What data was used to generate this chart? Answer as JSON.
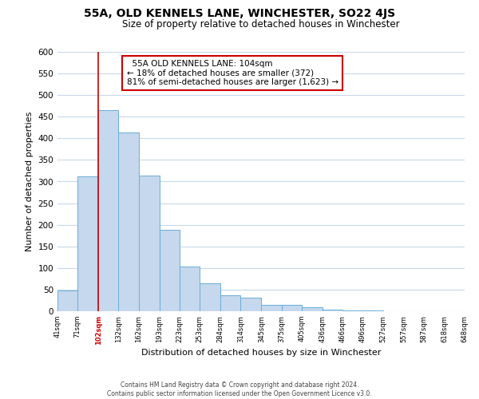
{
  "title": "55A, OLD KENNELS LANE, WINCHESTER, SO22 4JS",
  "subtitle": "Size of property relative to detached houses in Winchester",
  "xlabel": "Distribution of detached houses by size in Winchester",
  "ylabel": "Number of detached properties",
  "bar_values": [
    48,
    312,
    465,
    413,
    313,
    188,
    104,
    65,
    37,
    32,
    14,
    15,
    9,
    4,
    1,
    2,
    0,
    0,
    0,
    0
  ],
  "bin_edges_labels": [
    "41sqm",
    "71sqm",
    "102sqm",
    "132sqm",
    "162sqm",
    "193sqm",
    "223sqm",
    "253sqm",
    "284sqm",
    "314sqm",
    "345sqm",
    "375sqm",
    "405sqm",
    "436sqm",
    "466sqm",
    "496sqm",
    "527sqm",
    "557sqm",
    "587sqm",
    "618sqm",
    "648sqm"
  ],
  "bar_color": "#c5d8ed",
  "bar_edge_color": "#6baed6",
  "marker_line_index": 2,
  "marker_line_color": "#cc0000",
  "ylim": [
    0,
    600
  ],
  "yticks": [
    0,
    50,
    100,
    150,
    200,
    250,
    300,
    350,
    400,
    450,
    500,
    550,
    600
  ],
  "annotation_title": "55A OLD KENNELS LANE: 104sqm",
  "annotation_line1": "← 18% of detached houses are smaller (372)",
  "annotation_line2": "81% of semi-detached houses are larger (1,623) →",
  "annotation_box_color": "#ffffff",
  "annotation_box_edge": "#cc0000",
  "footer1": "Contains HM Land Registry data © Crown copyright and database right 2024.",
  "footer2": "Contains public sector information licensed under the Open Government Licence v3.0.",
  "background_color": "#ffffff",
  "grid_color": "#c8d8e8"
}
